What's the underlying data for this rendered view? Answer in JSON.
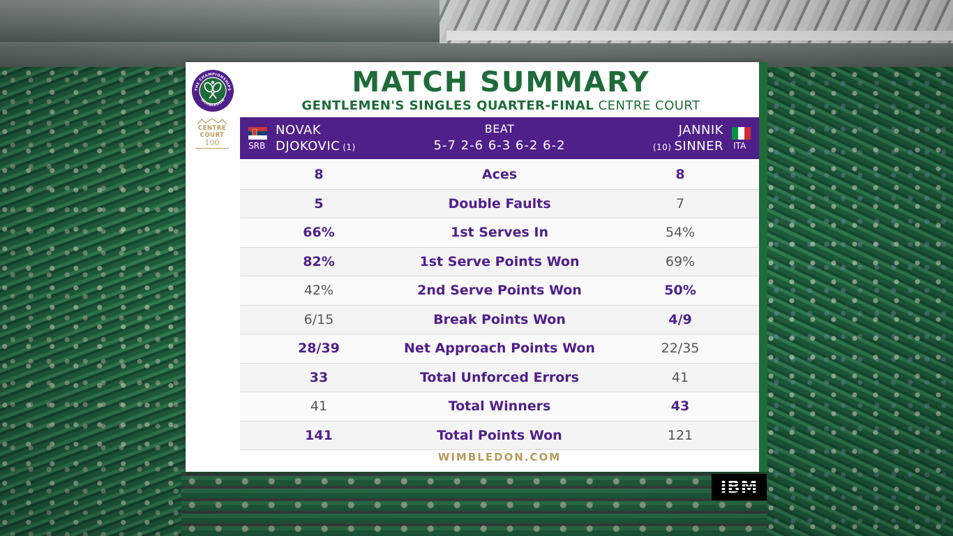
{
  "title": "MATCH SUMMARY",
  "subtitle": {
    "event": "GENTLEMEN'S SINGLES QUARTER-FINAL",
    "venue": "CENTRE COURT"
  },
  "logos": {
    "wimbledon_logo_text": "THE CHAMPIONSHIPS WIMBLEDON",
    "centre_court_line1": "CENTRE",
    "centre_court_line2": "COURT",
    "centre_court_number": "100"
  },
  "player1": {
    "country_code": "SRB",
    "first_name": "NOVAK",
    "last_name": "DJOKOVIC",
    "seed": "(1)",
    "flag_colors": [
      "#c6363c",
      "#0c4076",
      "#ffffff"
    ]
  },
  "player2": {
    "country_code": "ITA",
    "first_name": "JANNIK",
    "last_name": "SINNER",
    "seed": "(10)",
    "flag_colors": [
      "#009246",
      "#ffffff",
      "#ce2b37"
    ]
  },
  "result": {
    "word": "BEAT",
    "score": "5-7 2-6 6-3 6-2 6-2"
  },
  "stats": [
    {
      "label": "Aces",
      "p1": "8",
      "p2": "8",
      "p1_bold": true,
      "p2_bold": true
    },
    {
      "label": "Double Faults",
      "p1": "5",
      "p2": "7",
      "p1_bold": true,
      "p2_bold": false
    },
    {
      "label": "1st Serves In",
      "p1": "66%",
      "p2": "54%",
      "p1_bold": true,
      "p2_bold": false
    },
    {
      "label": "1st Serve Points Won",
      "p1": "82%",
      "p2": "69%",
      "p1_bold": true,
      "p2_bold": false
    },
    {
      "label": "2nd Serve Points Won",
      "p1": "42%",
      "p2": "50%",
      "p1_bold": false,
      "p2_bold": true
    },
    {
      "label": "Break Points Won",
      "p1": "6/15",
      "p2": "4/9",
      "p1_bold": false,
      "p2_bold": true
    },
    {
      "label": "Net Approach Points Won",
      "p1": "28/39",
      "p2": "22/35",
      "p1_bold": true,
      "p2_bold": false
    },
    {
      "label": "Total Unforced Errors",
      "p1": "33",
      "p2": "41",
      "p1_bold": true,
      "p2_bold": false
    },
    {
      "label": "Total Winners",
      "p1": "41",
      "p2": "43",
      "p1_bold": false,
      "p2_bold": true
    },
    {
      "label": "Total Points Won",
      "p1": "141",
      "p2": "121",
      "p1_bold": true,
      "p2_bold": false
    }
  ],
  "website": "WIMBLEDON.COM",
  "sponsor": "IBM",
  "colors": {
    "wimbledon_green": "#1f6b3a",
    "wimbledon_purple": "#4f1f8a",
    "gold": "#b79a5c"
  }
}
